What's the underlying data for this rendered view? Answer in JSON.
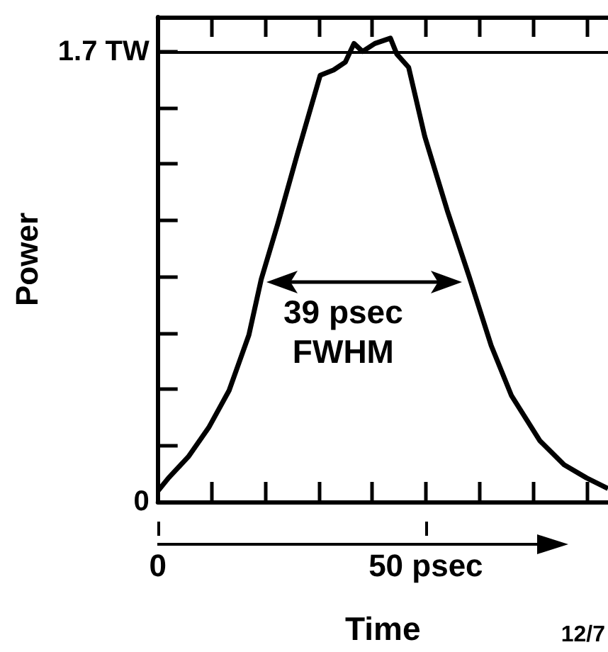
{
  "chart_data": {
    "type": "line",
    "xlabel": "Time",
    "ylabel": "Power",
    "x": [
      0,
      2,
      5.7,
      9.5,
      13.3,
      17,
      19.3,
      22.4,
      26,
      30.3,
      32.8,
      35,
      36.6,
      38.2,
      40.5,
      43.4,
      44.6,
      46.8,
      49.8,
      54,
      58.1,
      62.2,
      66,
      71.3,
      75.8,
      80,
      84
    ],
    "series": [
      {
        "color": "#000000",
        "values": [
          0.04,
          0.09,
          0.17,
          0.28,
          0.42,
          0.63,
          0.84,
          1.05,
          1.31,
          1.61,
          1.63,
          1.66,
          1.73,
          1.7,
          1.73,
          1.75,
          1.69,
          1.64,
          1.38,
          1.1,
          0.85,
          0.59,
          0.4,
          0.23,
          0.14,
          0.09,
          0.05
        ]
      }
    ],
    "xlim": [
      0,
      84
    ],
    "xticks": [
      {
        "value": 0,
        "label": "0"
      },
      {
        "value": 10,
        "label": null
      },
      {
        "value": 20,
        "label": null
      },
      {
        "value": 30,
        "label": null
      },
      {
        "value": 40,
        "label": null
      },
      {
        "value": 50,
        "label": "50 psec"
      },
      {
        "value": 60,
        "label": null
      },
      {
        "value": 70,
        "label": null
      },
      {
        "value": 80,
        "label": null
      }
    ],
    "ylim": [
      0,
      1.83
    ],
    "yticks": [
      {
        "value": 0,
        "label": "0"
      },
      {
        "value": 0.2125,
        "label": null
      },
      {
        "value": 0.425,
        "label": null
      },
      {
        "value": 0.6375,
        "label": null
      },
      {
        "value": 0.85,
        "label": null
      },
      {
        "value": 1.0625,
        "label": null
      },
      {
        "value": 1.275,
        "label": null
      },
      {
        "value": 1.4875,
        "label": null
      },
      {
        "value": 1.7,
        "label": "1.7 TW"
      }
    ],
    "ref_lines": [
      {
        "axis": "y",
        "value": 1.7
      }
    ],
    "annotations": [
      "39 psec\nFWHM",
      "12/7"
    ],
    "grid": false
  }
}
